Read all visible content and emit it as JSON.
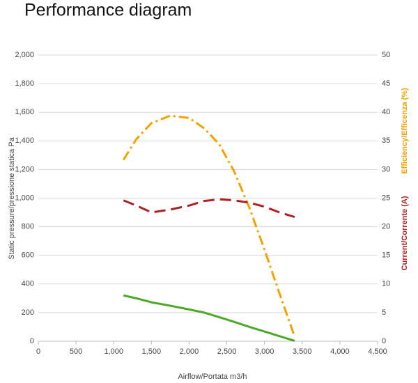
{
  "chart_data": {
    "type": "line",
    "title": "Performance diagram",
    "xlabel": "Airflow/Portata m3/h",
    "ylabel": "Static pressure/pressione statica Pa",
    "y2labels": [
      {
        "text": "Efficiency/Efficenza (%)",
        "color": "#f5a100"
      },
      {
        "text": "Current/Corrente (A)",
        "color": "#b02020"
      }
    ],
    "x": [
      1130,
      1300,
      1500,
      1750,
      2000,
      2200,
      2400,
      2600,
      2800,
      3000,
      3200,
      3400
    ],
    "series": [
      {
        "name": "Static pressure",
        "color": "#4aaa28",
        "dash": "solid",
        "values": [
          320,
          300,
          272,
          248,
          222,
          200,
          168,
          135,
          100,
          68,
          35,
          3
        ]
      },
      {
        "name": "Efficiency",
        "color": "#f5a100",
        "dash": "dashdot",
        "axis": "y2",
        "values": [
          31.7,
          35.3,
          38.1,
          39.4,
          39.0,
          37.2,
          34.4,
          29.6,
          23.3,
          16.0,
          8.3,
          0.8
        ]
      },
      {
        "name": "Current",
        "color": "#b02020",
        "dash": "dash",
        "axis": "y2",
        "values": [
          24.6,
          23.7,
          22.5,
          23.0,
          23.7,
          24.5,
          24.8,
          24.6,
          24.2,
          23.5,
          22.5,
          21.7
        ]
      }
    ],
    "xlim": [
      0,
      4500
    ],
    "xticks": [
      0,
      500,
      {
        "value": 1000,
        "label": "1,000"
      },
      {
        "value": 1500,
        "label": "1,500"
      },
      {
        "value": 2000,
        "label": "2,000"
      },
      {
        "value": 2500,
        "label": "2,500"
      },
      {
        "value": 3000,
        "label": "3,000"
      },
      {
        "value": 3500,
        "label": "3,500"
      },
      {
        "value": 4000,
        "label": "4,000"
      },
      {
        "value": 4500,
        "label": "4,500"
      }
    ],
    "ylim": [
      0,
      2000
    ],
    "yticks": [
      0,
      200,
      400,
      600,
      800,
      {
        "value": 1000,
        "label": "1,000"
      },
      {
        "value": 1200,
        "label": "1,200"
      },
      {
        "value": 1400,
        "label": "1,400"
      },
      {
        "value": 1600,
        "label": "1,600"
      },
      {
        "value": 1800,
        "label": "1,800"
      },
      {
        "value": 2000,
        "label": "2,000"
      }
    ],
    "y2lim": [
      0,
      50
    ],
    "y2ticks": [
      0,
      5,
      10,
      15,
      20,
      25,
      30,
      35,
      40,
      45,
      50
    ],
    "grid": true
  }
}
